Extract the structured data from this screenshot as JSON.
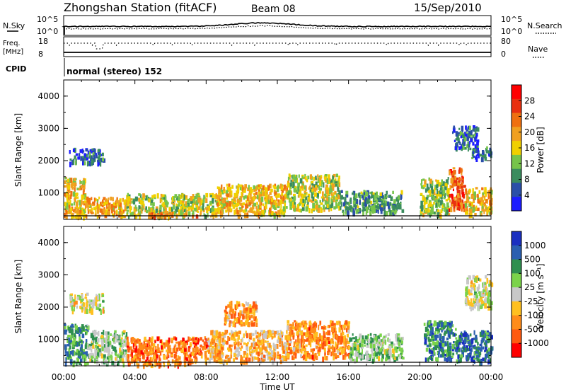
{
  "header": {
    "title": "Zhongshan Station (fitACF)",
    "beam": "Beam 08",
    "date": "15/Sep/2010"
  },
  "top_panels": {
    "sky_label": "N.Sky",
    "sky_ticks": [
      "10^5",
      "10^0"
    ],
    "search_label": "N.Search",
    "search_ticks": [
      "10^5",
      "10^0"
    ],
    "freq_label_1": "Freq.",
    "freq_label_2": "[MHz]",
    "freq_ticks": [
      "18",
      "8"
    ],
    "nave_label": "Nave",
    "nave_ticks": [
      "80",
      "0"
    ],
    "cpid_label": "CPID",
    "cpid_text": "normal (stereo) 152"
  },
  "colors": {
    "power_scale": [
      "#1c1cff",
      "#2a4fa8",
      "#3a8c5e",
      "#76c44a",
      "#f0d000",
      "#f0a020",
      "#ef7010",
      "#e83010",
      "#ff0000"
    ],
    "velocity_scale": [
      "#ff0000",
      "#ff5a10",
      "#ff8c1a",
      "#ffc020",
      "#c8c8c8",
      "#7bd34a",
      "#2f8f4f",
      "#2a5fb0",
      "#1a2fc0"
    ],
    "grey": "#c8c8c8"
  },
  "chart_data": [
    {
      "type": "heatmap",
      "name": "power",
      "ylabel": "Slant Range [km]",
      "yticks": [
        "1000",
        "2000",
        "3000",
        "4000"
      ],
      "ylim": [
        180,
        4500
      ],
      "xlim_hours": [
        0,
        24
      ],
      "colorbar_label": "Power [dB]",
      "colorbar_ticks": [
        "4",
        "8",
        "12",
        "16",
        "20",
        "24",
        "28"
      ],
      "colorbar_range": [
        0,
        32
      ],
      "regions": [
        {
          "t0": 0.0,
          "t1": 1.2,
          "r0": 280,
          "r1": 1500,
          "level": 0.55
        },
        {
          "t0": 0.3,
          "t1": 2.2,
          "r0": 1950,
          "r1": 2400,
          "level": 0.18
        },
        {
          "t0": 1.2,
          "t1": 3.5,
          "r0": 300,
          "r1": 900,
          "level": 0.6
        },
        {
          "t0": 3.5,
          "t1": 8.5,
          "r0": 300,
          "r1": 1000,
          "level": 0.45
        },
        {
          "t0": 4.5,
          "t1": 7.5,
          "r0": 300,
          "r1": 420,
          "level": 0.7
        },
        {
          "t0": 8.5,
          "t1": 12.5,
          "r0": 350,
          "r1": 1300,
          "level": 0.55
        },
        {
          "t0": 12.5,
          "t1": 15.5,
          "r0": 500,
          "r1": 1600,
          "level": 0.45
        },
        {
          "t0": 15.5,
          "t1": 19.0,
          "r0": 400,
          "r1": 1100,
          "level": 0.3
        },
        {
          "t0": 20.0,
          "t1": 21.6,
          "r0": 350,
          "r1": 1500,
          "level": 0.4
        },
        {
          "t0": 21.6,
          "t1": 22.5,
          "r0": 500,
          "r1": 1800,
          "level": 0.75
        },
        {
          "t0": 22.5,
          "t1": 24.0,
          "r0": 350,
          "r1": 1200,
          "level": 0.55
        },
        {
          "t0": 22.8,
          "t1": 24.0,
          "r0": 2100,
          "r1": 2450,
          "level": 0.2
        },
        {
          "t0": 21.8,
          "t1": 23.2,
          "r0": 2400,
          "r1": 3100,
          "level": 0.2
        }
      ]
    },
    {
      "type": "heatmap",
      "name": "velocity",
      "ylabel": "Slant Range [km]",
      "yticks": [
        "1000",
        "2000",
        "3000",
        "4000"
      ],
      "ylim": [
        180,
        4500
      ],
      "xlabel": "Time UT",
      "xticks": [
        "00:00",
        "04:00",
        "08:00",
        "12:00",
        "16:00",
        "20:00",
        "00:00"
      ],
      "xlim_hours": [
        0,
        24
      ],
      "colorbar_label": "Velocity [m s⁻¹]",
      "colorbar_ticks": [
        "1000",
        "500",
        "100",
        "25",
        "-25",
        "-100",
        "-500",
        "-1000"
      ],
      "regions": [
        {
          "t0": 0.0,
          "t1": 1.3,
          "r0": 280,
          "r1": 1500,
          "level": 0.72
        },
        {
          "t0": 0.3,
          "t1": 2.2,
          "r0": 1900,
          "r1": 2450,
          "level": 0.5
        },
        {
          "t0": 1.3,
          "t1": 3.5,
          "r0": 300,
          "r1": 1300,
          "level": 0.6
        },
        {
          "t0": 3.5,
          "t1": 8.0,
          "r0": 250,
          "r1": 1100,
          "level": 0.22
        },
        {
          "t0": 8.0,
          "t1": 12.5,
          "r0": 350,
          "r1": 1300,
          "level": 0.35
        },
        {
          "t0": 9.0,
          "t1": 10.8,
          "r0": 1500,
          "r1": 2200,
          "level": 0.3
        },
        {
          "t0": 12.5,
          "t1": 16.0,
          "r0": 450,
          "r1": 1600,
          "level": 0.28
        },
        {
          "t0": 16.0,
          "t1": 19.0,
          "r0": 400,
          "r1": 1200,
          "level": 0.6
        },
        {
          "t0": 20.2,
          "t1": 22.0,
          "r0": 400,
          "r1": 1600,
          "level": 0.75
        },
        {
          "t0": 22.0,
          "t1": 24.0,
          "r0": 350,
          "r1": 1300,
          "level": 0.8
        },
        {
          "t0": 22.5,
          "t1": 24.0,
          "r0": 2000,
          "r1": 3000,
          "level": 0.5
        }
      ]
    }
  ]
}
